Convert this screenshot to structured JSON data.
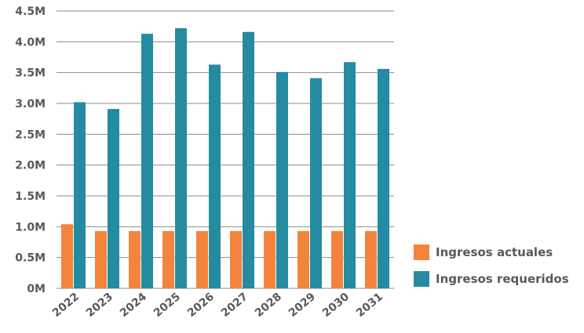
{
  "chart_data": {
    "type": "bar",
    "categories": [
      "2022",
      "2023",
      "2024",
      "2025",
      "2026",
      "2027",
      "2028",
      "2029",
      "2030",
      "2031"
    ],
    "series": [
      {
        "name": "Ingresos actuales",
        "color": "#F4843D",
        "values": [
          1.04,
          0.93,
          0.93,
          0.93,
          0.93,
          0.93,
          0.93,
          0.93,
          0.93,
          0.93
        ]
      },
      {
        "name": "Ingresos requeridos",
        "color": "#258BA1",
        "values": [
          3.02,
          2.91,
          4.13,
          4.22,
          3.63,
          4.16,
          3.51,
          3.41,
          3.67,
          3.56
        ]
      }
    ],
    "yticks": [
      "0M",
      "0.5M",
      "1.0M",
      "1.5M",
      "2.0M",
      "2.5M",
      "3.0M",
      "3.5M",
      "4.0M",
      "4.5M"
    ],
    "ylim": [
      0,
      4.5
    ],
    "unit": "M",
    "grid": true,
    "legend_position": "bottom-right"
  }
}
